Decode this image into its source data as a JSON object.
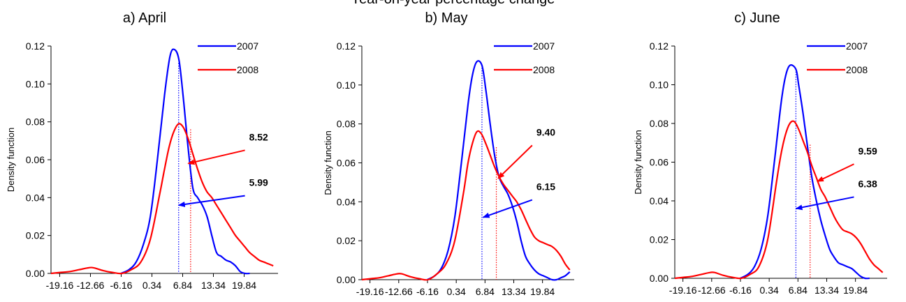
{
  "figure_title": "Year-on-year percentage change",
  "chart_data": [
    {
      "type": "line",
      "title": "a) April",
      "ylabel": "Density function",
      "xlabel": "",
      "ylim": [
        0,
        0.12
      ],
      "yticks": [
        "0.00",
        "0.02",
        "0.04",
        "0.06",
        "0.08",
        "0.10",
        "0.12"
      ],
      "xlim": [
        -21,
        27
      ],
      "xticks": [
        -19.16,
        -12.66,
        -6.16,
        0.34,
        6.84,
        13.34,
        19.84
      ],
      "xtick_labels": [
        "-19.16",
        "-12.66",
        "-6.16",
        "0.34",
        "6.84",
        "13.34",
        "19.84"
      ],
      "legend_position": "top-right",
      "series": [
        {
          "name": "2007",
          "color": "#0000ff",
          "x": [
            -6.2,
            -4.5,
            -3,
            -1.5,
            0,
            1.5,
            3,
            4.2,
            5.2,
            6.1,
            7,
            8,
            9,
            10,
            11,
            12,
            13,
            14,
            15,
            16,
            17,
            18,
            19,
            20,
            21
          ],
          "y": [
            0.0,
            0.002,
            0.006,
            0.015,
            0.03,
            0.06,
            0.094,
            0.115,
            0.118,
            0.112,
            0.092,
            0.066,
            0.045,
            0.04,
            0.036,
            0.03,
            0.02,
            0.011,
            0.009,
            0.007,
            0.006,
            0.004,
            0.001,
            0.0,
            0.0
          ]
        },
        {
          "name": "2008",
          "color": "#ff0000",
          "x": [
            -21,
            -19,
            -17,
            -15,
            -13,
            -12,
            -10,
            -8,
            -6,
            -4,
            -2,
            0,
            2,
            3,
            4,
            5,
            6,
            7,
            8,
            9,
            10,
            11,
            12,
            13,
            14,
            15,
            16,
            17,
            18,
            19,
            20,
            21,
            22,
            23,
            24,
            25,
            26
          ],
          "y": [
            0.0,
            0.0005,
            0.001,
            0.002,
            0.003,
            0.003,
            0.0015,
            0.0005,
            0.0,
            0.002,
            0.006,
            0.018,
            0.042,
            0.055,
            0.067,
            0.075,
            0.079,
            0.077,
            0.071,
            0.063,
            0.055,
            0.048,
            0.043,
            0.04,
            0.036,
            0.032,
            0.028,
            0.024,
            0.02,
            0.017,
            0.014,
            0.011,
            0.009,
            0.007,
            0.006,
            0.005,
            0.004
          ]
        }
      ],
      "vlines": [
        {
          "x": 5.99,
          "top": 0.111,
          "color": "#0000ff"
        },
        {
          "x": 8.52,
          "top": 0.076,
          "color": "#ff0000"
        }
      ],
      "annotations": [
        {
          "label": "8.52",
          "color": "#ff0000",
          "from": [
            20,
            0.065
          ],
          "to": [
            8.0,
            0.058
          ]
        },
        {
          "label": "5.99",
          "color": "#0000ff",
          "from": [
            20,
            0.041
          ],
          "to": [
            5.99,
            0.036
          ]
        }
      ]
    },
    {
      "type": "line",
      "title": "b) May",
      "ylabel": "Density function",
      "xlabel": "",
      "ylim": [
        0,
        0.12
      ],
      "yticks": [
        "0.00",
        "0.02",
        "0.04",
        "0.06",
        "0.08",
        "0.10",
        "0.12"
      ],
      "xlim": [
        -21,
        27
      ],
      "xticks": [
        -19.16,
        -12.66,
        -6.16,
        0.34,
        6.84,
        13.34,
        19.84
      ],
      "xtick_labels": [
        "-19.16",
        "-12.66",
        "-6.16",
        "0.34",
        "6.84",
        "13.34",
        "19.84"
      ],
      "legend_position": "top-right",
      "series": [
        {
          "name": "2007",
          "color": "#0000ff",
          "x": [
            -6.2,
            -4.5,
            -3,
            -1.5,
            0,
            1.5,
            3,
            4,
            5,
            6.15,
            7,
            8,
            9,
            10,
            11,
            12,
            13,
            14,
            15,
            16,
            17,
            18,
            19,
            20,
            21,
            22,
            23,
            24,
            25,
            26
          ],
          "y": [
            0.0,
            0.002,
            0.006,
            0.015,
            0.032,
            0.06,
            0.09,
            0.105,
            0.112,
            0.11,
            0.098,
            0.08,
            0.064,
            0.053,
            0.048,
            0.044,
            0.038,
            0.03,
            0.02,
            0.012,
            0.008,
            0.005,
            0.003,
            0.002,
            0.001,
            0.0,
            0.0,
            0.001,
            0.002,
            0.004
          ]
        },
        {
          "name": "2008",
          "color": "#ff0000",
          "x": [
            -21,
            -19,
            -17,
            -15,
            -13,
            -12,
            -10,
            -8,
            -6,
            -4,
            -2,
            0,
            2,
            3,
            4,
            5,
            6,
            7,
            8,
            9,
            10,
            11,
            12,
            13,
            14,
            15,
            16,
            17,
            18,
            19,
            20,
            21,
            22,
            23,
            24,
            25,
            26
          ],
          "y": [
            0.0,
            0.0005,
            0.001,
            0.002,
            0.003,
            0.003,
            0.0015,
            0.0005,
            0.0,
            0.003,
            0.008,
            0.02,
            0.045,
            0.06,
            0.07,
            0.076,
            0.075,
            0.07,
            0.064,
            0.058,
            0.053,
            0.049,
            0.046,
            0.043,
            0.04,
            0.036,
            0.031,
            0.026,
            0.022,
            0.02,
            0.019,
            0.018,
            0.017,
            0.015,
            0.012,
            0.008,
            0.005
          ]
        }
      ],
      "vlines": [
        {
          "x": 6.15,
          "top": 0.11,
          "color": "#0000ff"
        },
        {
          "x": 9.4,
          "top": 0.068,
          "color": "#ff0000"
        }
      ],
      "annotations": [
        {
          "label": "9.40",
          "color": "#ff0000",
          "from": [
            17.5,
            0.069
          ],
          "to": [
            9.8,
            0.052
          ]
        },
        {
          "label": "6.15",
          "color": "#0000ff",
          "from": [
            17.5,
            0.041
          ],
          "to": [
            6.4,
            0.032
          ]
        }
      ]
    },
    {
      "type": "line",
      "title": "c) June",
      "ylabel": "Density function",
      "xlabel": "",
      "ylim": [
        0,
        0.12
      ],
      "yticks": [
        "0.00",
        "0.02",
        "0.04",
        "0.06",
        "0.08",
        "0.10",
        "0.12"
      ],
      "xlim": [
        -21,
        27
      ],
      "xticks": [
        -19.16,
        -12.66,
        -6.16,
        0.34,
        6.84,
        13.34,
        19.84
      ],
      "xtick_labels": [
        "-19.16",
        "-12.66",
        "-6.16",
        "0.34",
        "6.84",
        "13.34",
        "19.84"
      ],
      "legend_position": "top-right",
      "series": [
        {
          "name": "2007",
          "color": "#0000ff",
          "x": [
            -6.2,
            -4.5,
            -3,
            -1.5,
            0,
            1.5,
            3,
            4,
            5,
            6.38,
            7,
            8,
            9,
            10,
            11,
            12,
            13,
            14,
            15,
            16,
            17,
            18,
            19,
            20,
            21,
            22,
            23
          ],
          "y": [
            0.0,
            0.002,
            0.006,
            0.015,
            0.032,
            0.06,
            0.09,
            0.104,
            0.11,
            0.108,
            0.1,
            0.085,
            0.068,
            0.052,
            0.04,
            0.03,
            0.022,
            0.015,
            0.011,
            0.008,
            0.007,
            0.006,
            0.005,
            0.003,
            0.001,
            0.0,
            0.0
          ]
        },
        {
          "name": "2008",
          "color": "#ff0000",
          "x": [
            -21,
            -19,
            -17,
            -15,
            -13,
            -12,
            -10,
            -8,
            -6,
            -4,
            -2,
            0,
            2,
            3,
            4,
            5,
            6,
            7,
            8,
            9,
            10,
            11,
            12,
            13,
            14,
            15,
            16,
            17,
            18,
            19,
            20,
            21,
            22,
            23,
            24,
            25,
            26
          ],
          "y": [
            0.0,
            0.0005,
            0.001,
            0.002,
            0.003,
            0.003,
            0.0015,
            0.0005,
            0.0,
            0.002,
            0.006,
            0.02,
            0.05,
            0.064,
            0.074,
            0.08,
            0.081,
            0.077,
            0.071,
            0.065,
            0.058,
            0.052,
            0.046,
            0.042,
            0.037,
            0.032,
            0.028,
            0.025,
            0.024,
            0.023,
            0.021,
            0.018,
            0.014,
            0.01,
            0.007,
            0.005,
            0.003
          ]
        }
      ],
      "vlines": [
        {
          "x": 6.38,
          "top": 0.108,
          "color": "#0000ff"
        },
        {
          "x": 9.59,
          "top": 0.069,
          "color": "#ff0000"
        }
      ],
      "annotations": [
        {
          "label": "9.59",
          "color": "#ff0000",
          "from": [
            19.5,
            0.059
          ],
          "to": [
            11.2,
            0.05
          ]
        },
        {
          "label": "6.38",
          "color": "#0000ff",
          "from": [
            19.5,
            0.042
          ],
          "to": [
            6.4,
            0.036
          ]
        }
      ]
    }
  ]
}
